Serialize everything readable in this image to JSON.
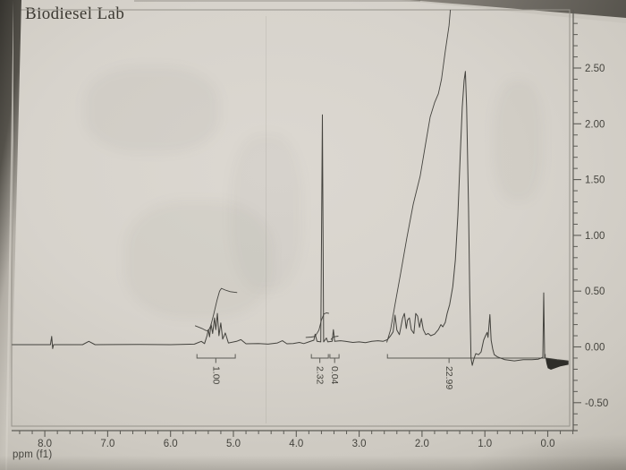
{
  "chart_data": {
    "type": "line",
    "title": "Biodiesel Lab",
    "xlabel": "ppm (f1)",
    "description": "1H NMR spectrum of biodiesel, x axis ppm reversed 8.0 to 0.0, intensity axis on right -0.50 to 2.50",
    "x_axis": {
      "reversed": true,
      "ticks": [
        {
          "v": 8.0,
          "label": "8.0"
        },
        {
          "v": 7.0,
          "label": "7.0"
        },
        {
          "v": 6.0,
          "label": "6.0"
        },
        {
          "v": 5.0,
          "label": "5.0"
        },
        {
          "v": 4.0,
          "label": "4.0"
        },
        {
          "v": 3.0,
          "label": "3.0"
        },
        {
          "v": 2.0,
          "label": "2.0"
        },
        {
          "v": 1.0,
          "label": "1.0"
        },
        {
          "v": 0.0,
          "label": "0.0"
        }
      ],
      "minor_step": 0.2,
      "minor_range": [
        -0.4,
        8.4
      ]
    },
    "y_axis": {
      "side": "right",
      "ticks": [
        {
          "v": 2.5,
          "label": "2.50"
        },
        {
          "v": 2.0,
          "label": "2.00"
        },
        {
          "v": 1.5,
          "label": "1.50"
        },
        {
          "v": 1.0,
          "label": "1.00"
        },
        {
          "v": 0.5,
          "label": "0.50"
        },
        {
          "v": 0.0,
          "label": "0.00"
        },
        {
          "v": -0.5,
          "label": "-0.50"
        }
      ],
      "minor_step": 0.1,
      "minor_range": [
        -0.7,
        2.9
      ]
    },
    "peaks_summary": [
      {
        "ppm": 7.89,
        "height": 0.09,
        "note": "tiny spike"
      },
      {
        "ppm": 7.3,
        "height": 0.05,
        "note": "tiny residual solvent"
      },
      {
        "ppm": 5.3,
        "height": 0.3,
        "note": "vinyl multiplet, integral 1.00"
      },
      {
        "ppm": 3.58,
        "height": 2.08,
        "note": "methyl ester singlet, integral 2.32"
      },
      {
        "ppm": 3.41,
        "height": 0.15,
        "note": "small peak, integral 0.04"
      },
      {
        "ppm": 2.0,
        "height": 0.3,
        "note": "allylic/alpha-CH2 multiplets"
      },
      {
        "ppm": 1.31,
        "height": 2.47,
        "note": "tall aliphatic CH2 envelope"
      },
      {
        "ppm": 0.92,
        "height": 0.29,
        "note": "terminal CH3"
      },
      {
        "ppm": 0.06,
        "height": 0.48,
        "note": "TMS reference"
      }
    ],
    "spectrum": [
      [
        8.53,
        0.02
      ],
      [
        8.0,
        0.02
      ],
      [
        7.91,
        0.02
      ],
      [
        7.89,
        0.095
      ],
      [
        7.875,
        -0.015
      ],
      [
        7.86,
        0.02
      ],
      [
        7.4,
        0.02
      ],
      [
        7.3,
        0.05
      ],
      [
        7.2,
        0.02
      ],
      [
        6.5,
        0.022
      ],
      [
        6.0,
        0.02
      ],
      [
        5.62,
        0.025
      ],
      [
        5.51,
        0.05
      ],
      [
        5.46,
        0.03
      ],
      [
        5.42,
        0.1
      ],
      [
        5.4,
        0.155
      ],
      [
        5.38,
        0.09
      ],
      [
        5.355,
        0.205
      ],
      [
        5.33,
        0.12
      ],
      [
        5.3,
        0.26
      ],
      [
        5.28,
        0.155
      ],
      [
        5.255,
        0.3
      ],
      [
        5.23,
        0.1
      ],
      [
        5.2,
        0.215
      ],
      [
        5.17,
        0.07
      ],
      [
        5.13,
        0.125
      ],
      [
        5.08,
        0.035
      ],
      [
        4.95,
        0.05
      ],
      [
        4.88,
        0.065
      ],
      [
        4.8,
        0.028
      ],
      [
        4.6,
        0.03
      ],
      [
        4.45,
        0.025
      ],
      [
        4.3,
        0.035
      ],
      [
        4.22,
        0.055
      ],
      [
        4.15,
        0.028
      ],
      [
        4.05,
        0.03
      ],
      [
        3.95,
        0.04
      ],
      [
        3.88,
        0.03
      ],
      [
        3.8,
        0.045
      ],
      [
        3.72,
        0.06
      ],
      [
        3.7,
        0.115
      ],
      [
        3.67,
        0.05
      ],
      [
        3.61,
        0.045
      ],
      [
        3.585,
        2.08
      ],
      [
        3.565,
        0.045
      ],
      [
        3.52,
        0.08
      ],
      [
        3.5,
        0.045
      ],
      [
        3.43,
        0.05
      ],
      [
        3.41,
        0.155
      ],
      [
        3.39,
        0.05
      ],
      [
        3.3,
        0.055
      ],
      [
        3.22,
        0.05
      ],
      [
        3.1,
        0.04
      ],
      [
        3.0,
        0.045
      ],
      [
        2.9,
        0.038
      ],
      [
        2.8,
        0.05
      ],
      [
        2.7,
        0.055
      ],
      [
        2.62,
        0.05
      ],
      [
        2.55,
        0.065
      ],
      [
        2.5,
        0.1
      ],
      [
        2.46,
        0.135
      ],
      [
        2.43,
        0.285
      ],
      [
        2.4,
        0.15
      ],
      [
        2.36,
        0.11
      ],
      [
        2.31,
        0.255
      ],
      [
        2.28,
        0.3
      ],
      [
        2.25,
        0.165
      ],
      [
        2.23,
        0.24
      ],
      [
        2.2,
        0.26
      ],
      [
        2.17,
        0.155
      ],
      [
        2.13,
        0.12
      ],
      [
        2.1,
        0.3
      ],
      [
        2.07,
        0.275
      ],
      [
        2.04,
        0.175
      ],
      [
        2.01,
        0.255
      ],
      [
        1.98,
        0.155
      ],
      [
        1.94,
        0.11
      ],
      [
        1.9,
        0.12
      ],
      [
        1.86,
        0.1
      ],
      [
        1.8,
        0.115
      ],
      [
        1.74,
        0.155
      ],
      [
        1.7,
        0.2
      ],
      [
        1.67,
        0.18
      ],
      [
        1.63,
        0.22
      ],
      [
        1.6,
        0.3
      ],
      [
        1.56,
        0.38
      ],
      [
        1.51,
        0.54
      ],
      [
        1.47,
        0.78
      ],
      [
        1.43,
        1.18
      ],
      [
        1.39,
        1.75
      ],
      [
        1.36,
        2.15
      ],
      [
        1.33,
        2.39
      ],
      [
        1.31,
        2.47
      ],
      [
        1.29,
        2.15
      ],
      [
        1.26,
        1.26
      ],
      [
        1.24,
        0.46
      ],
      [
        1.22,
        -0.1
      ],
      [
        1.2,
        -0.165
      ],
      [
        1.17,
        -0.1
      ],
      [
        1.145,
        -0.06
      ],
      [
        1.1,
        -0.07
      ],
      [
        1.06,
        -0.045
      ],
      [
        1.02,
        0.06
      ],
      [
        0.99,
        0.1
      ],
      [
        0.965,
        0.13
      ],
      [
        0.95,
        0.085
      ],
      [
        0.92,
        0.29
      ],
      [
        0.9,
        0.06
      ],
      [
        0.875,
        -0.02
      ],
      [
        0.85,
        -0.07
      ],
      [
        0.8,
        -0.09
      ],
      [
        0.75,
        -0.1
      ],
      [
        0.68,
        -0.115
      ],
      [
        0.53,
        -0.125
      ],
      [
        0.39,
        -0.115
      ],
      [
        0.25,
        -0.115
      ],
      [
        0.15,
        -0.11
      ],
      [
        0.105,
        -0.1
      ],
      [
        0.078,
        -0.092
      ],
      [
        0.064,
        0.485
      ],
      [
        0.05,
        -0.092
      ],
      [
        0.035,
        -0.1
      ],
      [
        -0.05,
        -0.107
      ],
      [
        -0.15,
        -0.115
      ],
      [
        -0.25,
        -0.12
      ],
      [
        -0.33,
        -0.127
      ]
    ],
    "artifact_fill": [
      [
        0.035,
        -0.1
      ],
      [
        -0.33,
        -0.127
      ],
      [
        -0.33,
        -0.16
      ],
      [
        -0.2,
        -0.175
      ],
      [
        -0.05,
        -0.205
      ],
      [
        0.0,
        -0.19
      ],
      [
        0.02,
        -0.15
      ]
    ],
    "integral_curves": [
      [
        [
          5.61,
          0.19
        ],
        [
          5.5,
          0.165
        ],
        [
          5.44,
          0.148
        ],
        [
          5.4,
          0.142
        ],
        [
          5.36,
          0.19
        ],
        [
          5.31,
          0.3
        ],
        [
          5.26,
          0.42
        ],
        [
          5.22,
          0.5
        ],
        [
          5.19,
          0.525
        ],
        [
          5.13,
          0.51
        ],
        [
          5.05,
          0.495
        ],
        [
          4.94,
          0.487
        ]
      ],
      [
        [
          3.85,
          0.085
        ],
        [
          3.76,
          0.088
        ],
        [
          3.7,
          0.095
        ],
        [
          3.64,
          0.15
        ],
        [
          3.6,
          0.24
        ],
        [
          3.56,
          0.295
        ],
        [
          3.52,
          0.305
        ],
        [
          3.48,
          0.3
        ]
      ],
      [
        [
          3.45,
          0.065
        ],
        [
          3.42,
          0.085
        ],
        [
          3.38,
          0.093
        ],
        [
          3.33,
          0.096
        ]
      ],
      [
        [
          2.56,
          0.04
        ],
        [
          2.5,
          0.156
        ],
        [
          2.43,
          0.38
        ],
        [
          2.34,
          0.66
        ],
        [
          2.24,
          0.98
        ],
        [
          2.14,
          1.28
        ],
        [
          2.03,
          1.53
        ],
        [
          1.94,
          1.83
        ],
        [
          1.87,
          2.06
        ],
        [
          1.8,
          2.19
        ],
        [
          1.74,
          2.27
        ],
        [
          1.69,
          2.4
        ],
        [
          1.63,
          2.65
        ],
        [
          1.57,
          2.88
        ],
        [
          1.545,
          3.05
        ]
      ]
    ],
    "integral_regions": [
      {
        "label": "1.00",
        "from": 5.58,
        "to": 4.97,
        "label_at": 5.28
      },
      {
        "label": "2.32",
        "from": 3.76,
        "to": 3.49,
        "label_at": 3.625
      },
      {
        "label": "0.04",
        "from": 3.465,
        "to": 3.32,
        "label_at": 3.39
      },
      {
        "label": "22.99",
        "from": 2.55,
        "to": 0.04,
        "label_at": 1.57
      }
    ],
    "colors": {
      "trace": "#44433e",
      "axis": "#5c5b55",
      "border": "#96938b",
      "text": "#45443e",
      "artifact": "#2e2d29"
    }
  }
}
